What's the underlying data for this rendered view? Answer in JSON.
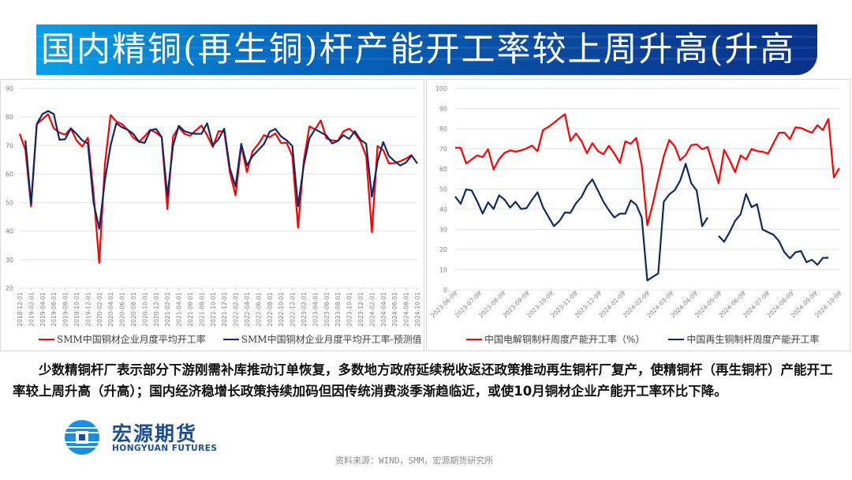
{
  "title": "国内精铜(再生铜)杆产能开工率较上周升高(升高",
  "body_text": "少数精铜杆厂表示部分下游刚需补库推动订单恢复，多数地方政府延续税收返还政策推动再生铜杆厂复产，使精铜杆（再生铜杆）产能开工率较上周升高（升高）；国内经济稳增长政策持续加码但因传统消费淡季渐趋临近，或使10月铜材企业产能开工率环比下降。",
  "logo": {
    "cn": "宏源期货",
    "en": "HONGYUAN FUTURES"
  },
  "source": "资料来源：WIND，SMM，宏源期货研究所",
  "colors": {
    "red": "#ff0000",
    "navy": "#0d2a66",
    "title_blue": "#0a4aa0"
  },
  "chart_data": [
    {
      "type": "line",
      "title": "",
      "ylim": [
        20,
        90
      ],
      "yticks": [
        "20",
        "30",
        "40",
        "50",
        "60",
        "70",
        "80",
        "90"
      ],
      "grid": true,
      "legend_position": "bottom",
      "x_start": "2018-12-01",
      "x_end": "2024-10-01",
      "x_ticks": [
        "2018-12-01",
        "2019-02-01",
        "2019-04-01",
        "2019-06-01",
        "2019-08-01",
        "2019-10-01",
        "2019-12-01",
        "2020-02-01",
        "2020-04-01",
        "2020-06-01",
        "2020-08-01",
        "2020-10-01",
        "2020-12-01",
        "2021-02-01",
        "2021-04-01",
        "2021-06-01",
        "2021-08-01",
        "2021-10-01",
        "2021-12-01",
        "2022-02-01",
        "2022-04-01",
        "2022-06-01",
        "2022-08-01",
        "2022-10-01",
        "2022-12-01",
        "2023-02-01",
        "2023-04-01",
        "2023-06-01",
        "2023-08-01",
        "2023-10-01",
        "2023-12-01",
        "2024-02-01",
        "2024-04-01",
        "2024-06-01",
        "2024-08-01",
        "2024-10-01"
      ],
      "series": [
        {
          "name": "SMM中国铜材企业月度平均开工率",
          "color": "#ff0000",
          "values": [
            74.1,
            68.5,
            48.6,
            77.5,
            79.2,
            81,
            76,
            74.5,
            73.8,
            76,
            71.8,
            69.6,
            72.7,
            53.3,
            28.8,
            63.5,
            80.7,
            78.4,
            77.5,
            75.5,
            72.7,
            71.3,
            73.2,
            75.5,
            74.5,
            72.9,
            47.7,
            73.2,
            76.4,
            74.1,
            73.4,
            75.3,
            77,
            73.6,
            69.5,
            75,
            75,
            60.6,
            52.5,
            69.8,
            60.7,
            68,
            70.5,
            73.6,
            72.9,
            74.2,
            70.9,
            70.9,
            66.3,
            41.2,
            64.5,
            76.7,
            75.6,
            78.8,
            72.5,
            71.8,
            71.6,
            75,
            75.9,
            74.2,
            71.4,
            66.3,
            39.6,
            69.8,
            68.4,
            63.7,
            63.8,
            64.5,
            65.4,
            66.7,
            null
          ]
        },
        {
          "name": "SMM中国铜材企业月度平均开工率-预测值",
          "color": "#0d2a66",
          "values": [
            null,
            71.8,
            49.6,
            77.5,
            81,
            82.1,
            81,
            72,
            72.2,
            76,
            74.1,
            71.8,
            70.7,
            50,
            40.8,
            57.9,
            70,
            77.8,
            76.4,
            75.5,
            74.1,
            71.3,
            70.9,
            75.3,
            75.8,
            72.9,
            52.3,
            70,
            76.9,
            75,
            74.4,
            74.1,
            74.1,
            77.8,
            70,
            72.2,
            75.9,
            62,
            55.6,
            70.6,
            63,
            66.3,
            68.4,
            70.5,
            74.8,
            75.8,
            73.2,
            71.8,
            69.8,
            48.7,
            63,
            72.5,
            75.7,
            74.6,
            73.5,
            70.7,
            71.6,
            73.6,
            72.3,
            75,
            72,
            70.6,
            52,
            64.5,
            71.2,
            66.3,
            64.5,
            63,
            64,
            66.5,
            63.7
          ]
        }
      ]
    },
    {
      "type": "line",
      "title": "",
      "ylim": [
        0,
        100
      ],
      "yticks": [
        "0",
        "10",
        "20",
        "30",
        "40",
        "50",
        "60",
        "70",
        "80",
        "90",
        "100"
      ],
      "grid": true,
      "legend_position": "bottom",
      "x_start": "2023-06-09",
      "x_end": "2024-10-09",
      "x_ticks": [
        "2023-06-09",
        "2023-07-09",
        "2023-08-09",
        "2023-09-09",
        "2023-10-09",
        "2023-11-09",
        "2023-12-09",
        "2024-01-09",
        "2024-02-09",
        "2024-03-09",
        "2024-04-09",
        "2024-05-09",
        "2024-06-09",
        "2024-07-09",
        "2024-08-09",
        "2024-09-09",
        "2024-10-09"
      ],
      "series": [
        {
          "name": "中国电解铜制杆周度产能开工率（%）",
          "color": "#ff0000",
          "values": [
            70.5,
            70.5,
            62.7,
            64.7,
            66.7,
            65.9,
            69.8,
            59.7,
            65,
            68,
            69.2,
            68.6,
            69.2,
            70.2,
            71.6,
            68.8,
            79.3,
            80.9,
            82.9,
            85.2,
            87.2,
            73.9,
            77.6,
            73.9,
            67.8,
            72.8,
            68.9,
            67.3,
            71.5,
            67.6,
            63,
            73.7,
            72.5,
            75.4,
            61.7,
            32,
            42.7,
            54.5,
            66.3,
            74.4,
            71.2,
            64.3,
            66.9,
            71.8,
            72.2,
            69.8,
            70.9,
            61.7,
            52.9,
            69.5,
            64.3,
            58.4,
            66.7,
            64.7,
            69.9,
            68.9,
            68.6,
            67.6,
            72.8,
            78,
            78,
            74.8,
            80.7,
            80.3,
            79.1,
            78,
            81.7,
            79.3,
            84.8,
            55.8,
            60.4
          ]
        },
        {
          "name": "中国再生铜制杆周度产能开工率",
          "color": "#0d2a66",
          "values": [
            46.3,
            42.7,
            49.9,
            49.3,
            44,
            37.8,
            43.4,
            40.1,
            46.9,
            44.7,
            40.8,
            43.7,
            40.1,
            40.5,
            44.7,
            48.4,
            41,
            36.2,
            31.6,
            34.2,
            38.4,
            38.2,
            43,
            46,
            51.5,
            54.8,
            49.3,
            43.8,
            39.5,
            35.9,
            37.8,
            37.8,
            44.4,
            42.1,
            35.9,
            4.6,
            6.4,
            8.1,
            43.7,
            47.3,
            49.5,
            54.2,
            62.6,
            52.9,
            49.3,
            31.6,
            35.9,
            null,
            26.8,
            23.8,
            28.6,
            34.2,
            37.5,
            47.6,
            41,
            42.5,
            29.9,
            28.6,
            27.3,
            24.1,
            18.6,
            15.6,
            18.6,
            19.2,
            13.7,
            14.9,
            12.4,
            15.8,
            15.9,
            null,
            null
          ]
        }
      ]
    }
  ]
}
